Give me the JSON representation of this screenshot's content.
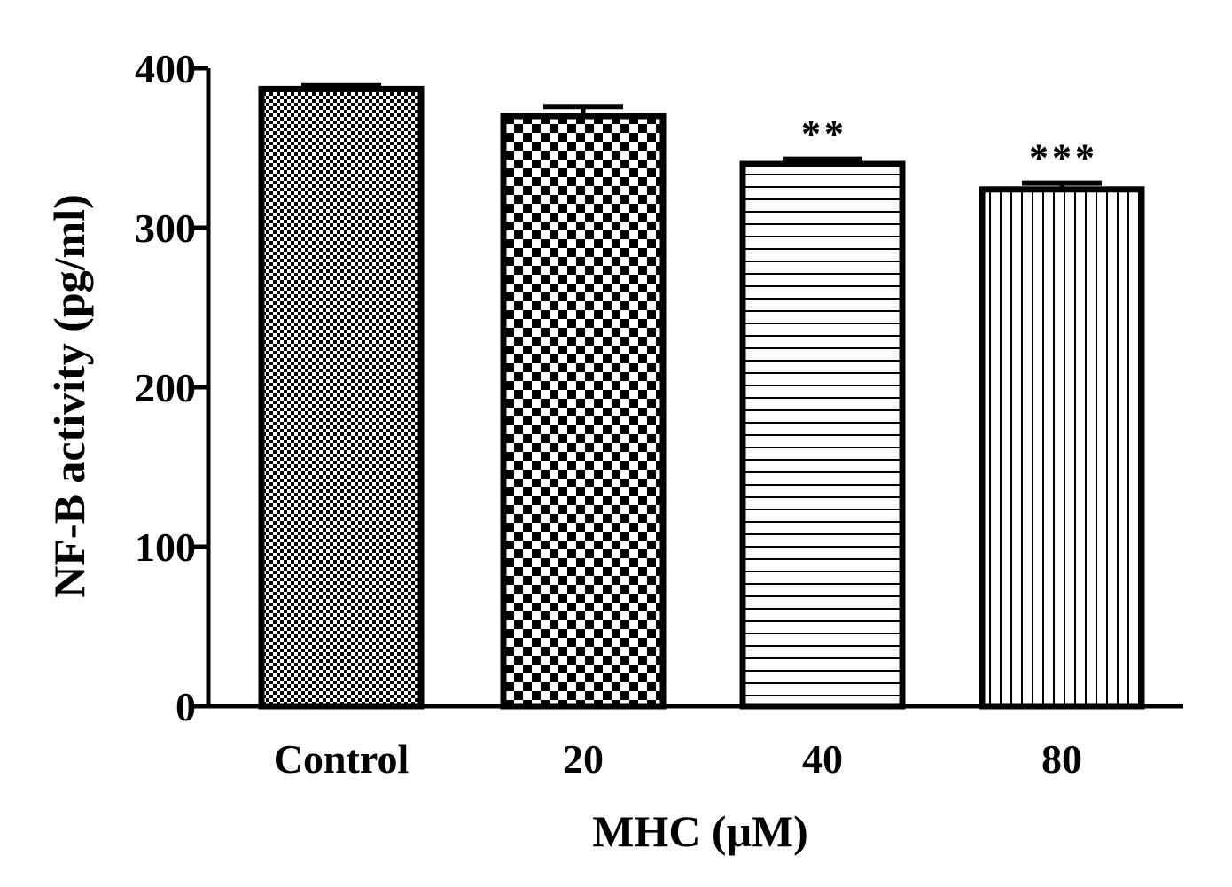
{
  "chart_data": {
    "type": "bar",
    "categories": [
      "Control",
      "20",
      "40",
      "80"
    ],
    "values": [
      387,
      370,
      340,
      324
    ],
    "errors": [
      2,
      6,
      3,
      4
    ],
    "annotations": [
      "",
      "",
      "**",
      "***"
    ],
    "patterns": [
      "fine-checker",
      "coarse-checker",
      "horizontal-lines",
      "vertical-lines"
    ],
    "xlabel": "MHC (μM)",
    "ylabel": "NF-B activity (pg/ml)",
    "ylim": [
      0,
      400
    ],
    "yticks": [
      "0",
      "100",
      "200",
      "300",
      "400"
    ],
    "grid": false,
    "legend": "none",
    "colors": {
      "bar_stroke": "#000000",
      "pattern": "#000000",
      "background": "#ffffff"
    }
  }
}
